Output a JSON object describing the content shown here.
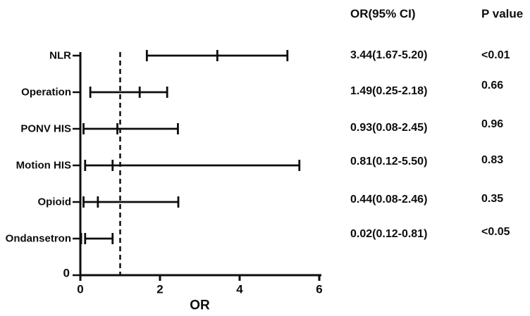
{
  "table": {
    "or_header": "OR(95% CI)",
    "p_header": "P value"
  },
  "chart_data": {
    "type": "forest",
    "title": "",
    "xlabel": "OR",
    "ylabel": "",
    "xlim": [
      0,
      6
    ],
    "x_ticks": [
      "0",
      "2",
      "4",
      "6"
    ],
    "x_tick_values": [
      0,
      2,
      4,
      6
    ],
    "y_axis_zero_label": "0",
    "reference_line_x": 1,
    "grid": false,
    "legend": "none",
    "line_color": "#0d0d0d",
    "rows": [
      {
        "label": "NLR",
        "or": 3.44,
        "ci_low": 1.67,
        "ci_high": 5.2,
        "or_ci": "3.44(1.67-5.20)",
        "p": "<0.01"
      },
      {
        "label": "Operation",
        "or": 1.49,
        "ci_low": 0.25,
        "ci_high": 2.18,
        "or_ci": "1.49(0.25-2.18)",
        "p": "0.66"
      },
      {
        "label": "PONV HIS",
        "or": 0.93,
        "ci_low": 0.08,
        "ci_high": 2.45,
        "or_ci": "0.93(0.08-2.45)",
        "p": "0.96"
      },
      {
        "label": "Motion HIS",
        "or": 0.81,
        "ci_low": 0.12,
        "ci_high": 5.5,
        "or_ci": "0.81(0.12-5.50)",
        "p": "0.83"
      },
      {
        "label": "Opioid",
        "or": 0.44,
        "ci_low": 0.08,
        "ci_high": 2.46,
        "or_ci": "0.44(0.08-2.46)",
        "p": "0.35"
      },
      {
        "label": "Ondansetron",
        "or": 0.02,
        "ci_low": 0.12,
        "ci_high": 0.81,
        "or_ci": "0.02(0.12-0.81)",
        "p": "<0.05"
      }
    ]
  }
}
